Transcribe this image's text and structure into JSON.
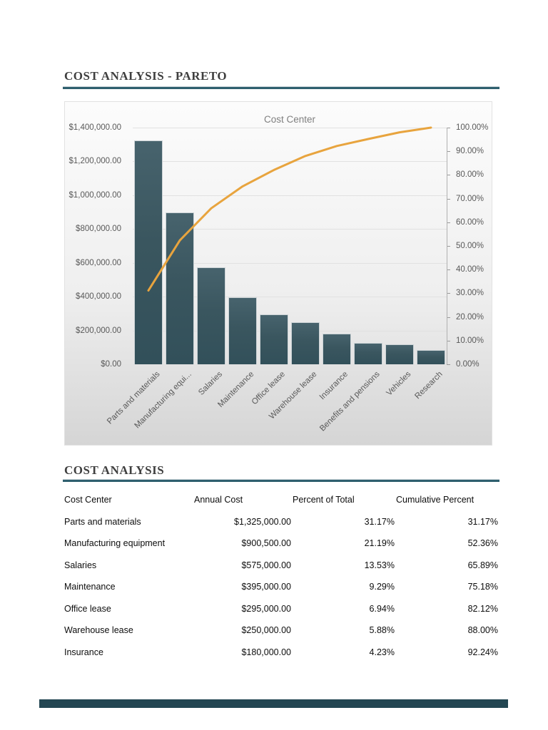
{
  "page": {
    "section1_title": "COST ANALYSIS - PARETO",
    "section2_title": "COST ANALYSIS"
  },
  "colors": {
    "heading_rule_teal": "#2e5f6e",
    "bar_fill": "#3a565f",
    "cumulative_line": "#e8a43e",
    "chart_text": "#595959",
    "footer_bar": "#234652"
  },
  "chart_data": {
    "type": "bar",
    "title": "Cost Center",
    "categories": [
      "Parts and materials",
      "Manufacturing equipment",
      "Salaries",
      "Maintenance",
      "Office lease",
      "Warehouse lease",
      "Insurance",
      "Benefits and pensions",
      "Vehicles",
      "Research"
    ],
    "tick_labels": [
      "Parts and materials",
      "Manufacturing equi...",
      "Salaries",
      "Maintenance",
      "Office lease",
      "Warehouse lease",
      "Insurance",
      "Benefits and pensions",
      "Vehicles",
      "Research"
    ],
    "series": [
      {
        "name": "Annual Cost",
        "type": "bar",
        "values": [
          1325000,
          900500,
          575000,
          395000,
          295000,
          250000,
          180000,
          125000,
          120000,
          85000
        ]
      },
      {
        "name": "Cumulative Percent",
        "type": "line",
        "values": [
          31.17,
          52.36,
          65.89,
          75.18,
          82.12,
          88.0,
          92.24,
          95.18,
          98.0,
          100.0
        ]
      }
    ],
    "left_axis": {
      "min": 0,
      "max": 1400000,
      "step": 200000,
      "labels": [
        "$1,400,000.00",
        "$1,200,000.00",
        "$1,000,000.00",
        "$800,000.00",
        "$600,000.00",
        "$400,000.00",
        "$200,000.00",
        "$0.00"
      ]
    },
    "right_axis": {
      "min": 0,
      "max": 100,
      "step": 10,
      "labels": [
        "100.00%",
        "90.00%",
        "80.00%",
        "70.00%",
        "60.00%",
        "50.00%",
        "40.00%",
        "30.00%",
        "20.00%",
        "10.00%",
        "0.00%"
      ]
    },
    "grid": true,
    "legend": "none",
    "colors": {
      "bar": "#3a565f",
      "line": "#e8a43e"
    }
  },
  "table": {
    "headers": [
      "Cost Center",
      "Annual Cost",
      "Percent of Total",
      "Cumulative Percent"
    ],
    "rows": [
      [
        "Parts and materials",
        "$1,325,000.00",
        "31.17%",
        "31.17%"
      ],
      [
        "Manufacturing equipment",
        "$900,500.00",
        "21.19%",
        "52.36%"
      ],
      [
        "Salaries",
        "$575,000.00",
        "13.53%",
        "65.89%"
      ],
      [
        "Maintenance",
        "$395,000.00",
        "9.29%",
        "75.18%"
      ],
      [
        "Office lease",
        "$295,000.00",
        "6.94%",
        "82.12%"
      ],
      [
        "Warehouse lease",
        "$250,000.00",
        "5.88%",
        "88.00%"
      ],
      [
        "Insurance",
        "$180,000.00",
        "4.23%",
        "92.24%"
      ]
    ]
  }
}
